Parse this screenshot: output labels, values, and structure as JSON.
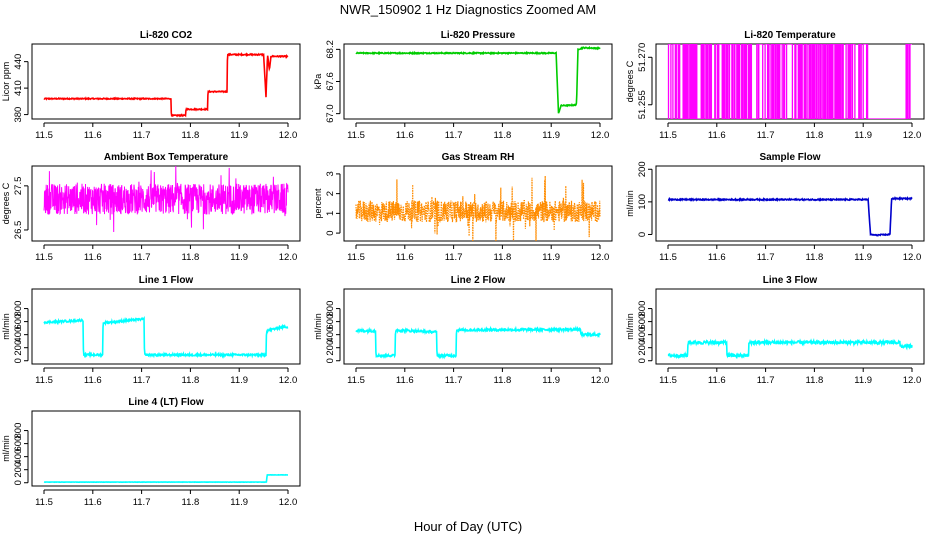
{
  "figure": {
    "title": "NWR_150902  1 Hz Diagnostics Zoomed AM",
    "xlabel": "Hour of Day (UTC)"
  },
  "chart_data": [
    {
      "type": "line",
      "title": "Li-820 CO2",
      "ylabel": "Licor ppm",
      "color": "#ff0000",
      "xlim": [
        11.5,
        12.0
      ],
      "ylim": [
        375,
        460
      ],
      "xticks": [
        "11.5",
        "11.6",
        "11.7",
        "11.8",
        "11.9",
        "12.0"
      ],
      "yticks": [
        {
          "v": 380,
          "label": "380"
        },
        {
          "v": 410,
          "label": "410"
        },
        {
          "v": 440,
          "label": "440"
        }
      ],
      "x": [
        11.5,
        11.76,
        11.761,
        11.79,
        11.791,
        11.835,
        11.836,
        11.875,
        11.876,
        11.95,
        11.955,
        11.958,
        11.962,
        11.965,
        12.0
      ],
      "y": [
        398,
        398,
        379,
        379,
        386,
        386,
        406,
        406,
        448,
        448,
        400,
        448,
        430,
        446,
        446
      ],
      "noise": 0.6
    },
    {
      "type": "line",
      "title": "Li-820 Pressure",
      "ylabel": "kPa",
      "color": "#00cc00",
      "xlim": [
        11.5,
        12.0
      ],
      "ylim": [
        66.9,
        68.3
      ],
      "xticks": [
        "11.5",
        "11.6",
        "11.7",
        "11.8",
        "11.9",
        "12.0"
      ],
      "yticks": [
        {
          "v": 67.0,
          "label": "67.0"
        },
        {
          "v": 67.6,
          "label": "67.6"
        },
        {
          "v": 68.2,
          "label": "68.2"
        }
      ],
      "x": [
        11.5,
        11.91,
        11.915,
        11.92,
        11.95,
        11.952,
        11.955,
        11.965,
        12.0
      ],
      "y": [
        68.13,
        68.13,
        67.0,
        67.15,
        67.16,
        67.2,
        68.2,
        68.23,
        68.22
      ],
      "noise": 0.01
    },
    {
      "type": "spikes",
      "title": "Li-820 Temperature",
      "ylabel": "degrees C",
      "color": "#ff00ff",
      "xlim": [
        11.5,
        12.0
      ],
      "ylim": [
        51.2505,
        51.2742
      ],
      "xticks": [
        "11.5",
        "11.6",
        "11.7",
        "11.8",
        "11.9",
        "12.0"
      ],
      "yticks": [
        {
          "v": 51.255,
          "label": "51.255"
        },
        {
          "v": 51.27,
          "label": "51.270"
        }
      ],
      "low": 51.2505,
      "high": 51.2742,
      "spike_density": 0.38,
      "quiet_from": 11.91,
      "quiet_to": 11.985
    },
    {
      "type": "noise",
      "title": "Ambient Box Temperature",
      "ylabel": "degrees C",
      "color": "#ff00ff",
      "xlim": [
        11.5,
        12.0
      ],
      "ylim": [
        26.25,
        27.95
      ],
      "xticks": [
        "11.5",
        "11.6",
        "11.7",
        "11.8",
        "11.9",
        "12.0"
      ],
      "yticks": [
        {
          "v": 26.5,
          "label": "26.5"
        },
        {
          "v": 27.5,
          "label": "27.5"
        }
      ],
      "center": 27.2,
      "amp": 0.35,
      "spike_amp": 0.85
    },
    {
      "type": "noise",
      "title": "Gas Stream RH",
      "ylabel": "percent",
      "color": "#ff8c00",
      "dotted": true,
      "xlim": [
        11.5,
        12.0
      ],
      "ylim": [
        -0.4,
        3.4
      ],
      "xticks": [
        "11.5",
        "11.6",
        "11.7",
        "11.8",
        "11.9",
        "12.0"
      ],
      "yticks": [
        {
          "v": 0,
          "label": "0"
        },
        {
          "v": 1,
          "label": "1"
        },
        {
          "v": 2,
          "label": "2"
        },
        {
          "v": 3,
          "label": "3"
        }
      ],
      "center": 1.1,
      "amp": 0.55,
      "spike_amp": 1.8
    },
    {
      "type": "line",
      "title": "Sample Flow",
      "ylabel": "ml/min",
      "color": "#0000cc",
      "xlim": [
        11.5,
        12.0
      ],
      "ylim": [
        -20,
        210
      ],
      "xticks": [
        "11.5",
        "11.6",
        "11.7",
        "11.8",
        "11.9",
        "12.0"
      ],
      "yticks": [
        {
          "v": 0,
          "label": "0"
        },
        {
          "v": 100,
          "label": "100"
        },
        {
          "v": 200,
          "label": "200"
        }
      ],
      "x": [
        11.5,
        11.91,
        11.915,
        11.925,
        11.955,
        11.958,
        12.0
      ],
      "y": [
        107,
        107,
        0,
        -2,
        0,
        110,
        110
      ],
      "noise": 1.8
    },
    {
      "type": "line",
      "title": "Line 1 Flow",
      "ylabel": "ml/min",
      "color": "#00ffff",
      "xlim": [
        11.5,
        12.0
      ],
      "ylim": [
        -50,
        1100
      ],
      "xticks": [
        "11.5",
        "11.6",
        "11.7",
        "11.8",
        "11.9",
        "12.0"
      ],
      "yticks": [
        {
          "v": 0,
          "label": "0"
        },
        {
          "v": 200,
          "label": "200"
        },
        {
          "v": 400,
          "label": "400"
        },
        {
          "v": 600,
          "label": "600"
        },
        {
          "v": 800,
          "label": "800"
        }
      ],
      "x": [
        11.5,
        11.58,
        11.581,
        11.62,
        11.621,
        11.705,
        11.706,
        11.955,
        11.956,
        11.99,
        12.0
      ],
      "y": [
        590,
        620,
        90,
        90,
        580,
        640,
        90,
        90,
        460,
        520,
        520
      ],
      "noise": 15
    },
    {
      "type": "line",
      "title": "Line 2 Flow",
      "ylabel": "ml/min",
      "color": "#00ffff",
      "xlim": [
        11.5,
        12.0
      ],
      "ylim": [
        -50,
        1100
      ],
      "xticks": [
        "11.5",
        "11.6",
        "11.7",
        "11.8",
        "11.9",
        "12.0"
      ],
      "yticks": [
        {
          "v": 0,
          "label": "0"
        },
        {
          "v": 200,
          "label": "200"
        },
        {
          "v": 400,
          "label": "400"
        },
        {
          "v": 600,
          "label": "600"
        },
        {
          "v": 800,
          "label": "800"
        }
      ],
      "x": [
        11.5,
        11.54,
        11.541,
        11.58,
        11.581,
        11.665,
        11.666,
        11.705,
        11.706,
        11.96,
        11.961,
        12.0
      ],
      "y": [
        460,
        460,
        80,
        80,
        470,
        440,
        80,
        80,
        470,
        480,
        400,
        400
      ],
      "noise": 18
    },
    {
      "type": "line",
      "title": "Line 3 Flow",
      "ylabel": "ml/min",
      "color": "#00ffff",
      "xlim": [
        11.5,
        12.0
      ],
      "ylim": [
        -50,
        1100
      ],
      "xticks": [
        "11.5",
        "11.6",
        "11.7",
        "11.8",
        "11.9",
        "12.0"
      ],
      "yticks": [
        {
          "v": 0,
          "label": "0"
        },
        {
          "v": 200,
          "label": "200"
        },
        {
          "v": 400,
          "label": "400"
        },
        {
          "v": 600,
          "label": "600"
        },
        {
          "v": 800,
          "label": "800"
        }
      ],
      "x": [
        11.5,
        11.54,
        11.541,
        11.62,
        11.621,
        11.665,
        11.666,
        11.975,
        11.976,
        12.0
      ],
      "y": [
        80,
        80,
        280,
        280,
        80,
        80,
        280,
        280,
        220,
        220
      ],
      "noise": 25
    },
    {
      "type": "line",
      "title": "Line 4 (LT) Flow",
      "ylabel": "ml/min",
      "color": "#00ffff",
      "xlim": [
        11.5,
        12.0
      ],
      "ylim": [
        -50,
        1100
      ],
      "xticks": [
        "11.5",
        "11.6",
        "11.7",
        "11.8",
        "11.9",
        "12.0"
      ],
      "yticks": [
        {
          "v": 0,
          "label": "0"
        },
        {
          "v": 200,
          "label": "200"
        },
        {
          "v": 400,
          "label": "400"
        },
        {
          "v": 600,
          "label": "600"
        },
        {
          "v": 800,
          "label": "800"
        }
      ],
      "x": [
        11.5,
        11.956,
        11.957,
        12.0
      ],
      "y": [
        10,
        10,
        120,
        120
      ],
      "noise": 2
    }
  ]
}
